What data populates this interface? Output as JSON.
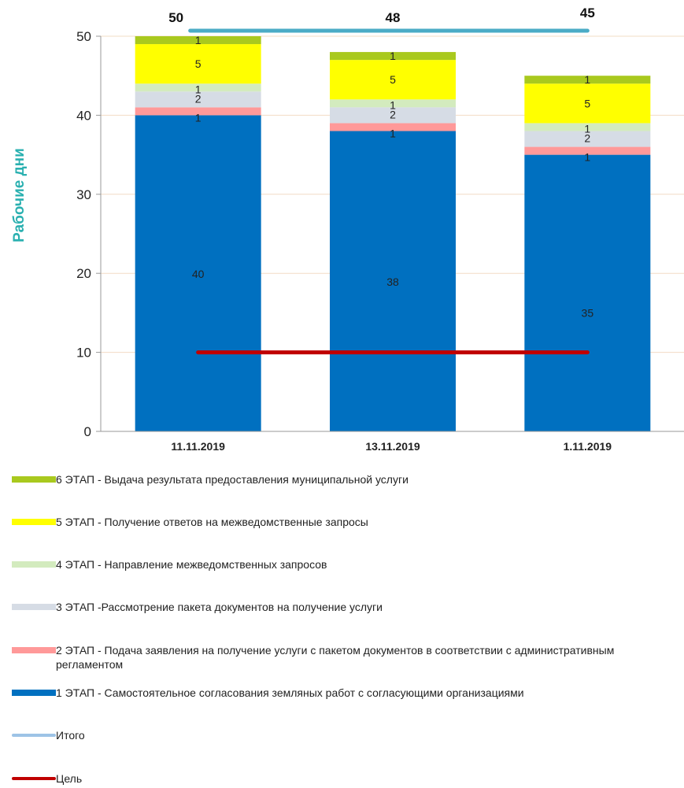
{
  "chart_data": {
    "type": "bar",
    "stacked": true,
    "categories": [
      "11.11.2019",
      "13.11.2019",
      "1.11.2019"
    ],
    "ylabel": "Рабочие дни",
    "ylim": [
      0,
      50
    ],
    "yticks": [
      0,
      10,
      20,
      30,
      40,
      50
    ],
    "grid": true,
    "legend_position": "bottom",
    "series": [
      {
        "name": "1 ЭТАП - Самостоятельное согласования земляных работ с согласующими организациями",
        "values": [
          40,
          38,
          35
        ],
        "color": "#0070C0"
      },
      {
        "name": "2 ЭТАП - Подача заявления на получение услуги  с пакетом документов в соответствии с административным регламентом",
        "values": [
          1,
          1,
          1
        ],
        "color": "#FF9999"
      },
      {
        "name": "3 ЭТАП -Рассмотрение пакета документов на получение услуги",
        "values": [
          2,
          2,
          2
        ],
        "color": "#D6DCE5"
      },
      {
        "name": "4 ЭТАП - Направление межведомственных запросов",
        "values": [
          1,
          1,
          1
        ],
        "color": "#D3EBBE"
      },
      {
        "name": "5 ЭТАП - Получение ответов на межведомственные запросы",
        "values": [
          5,
          5,
          5
        ],
        "color": "#FFFF00"
      },
      {
        "name": "6 ЭТАП - Выдача результата предоставления муниципальной услуги",
        "values": [
          1,
          1,
          1
        ],
        "color": "#A9C91E"
      }
    ],
    "lines": [
      {
        "name": "Итого",
        "values": [
          50,
          48,
          45
        ],
        "labels": [
          "50",
          "48",
          "45"
        ],
        "color": "#4BACC6",
        "legend_color": "#9DC3E6"
      },
      {
        "name": "Цель",
        "values": [
          10,
          10,
          10
        ],
        "color": "#C00000"
      }
    ]
  }
}
